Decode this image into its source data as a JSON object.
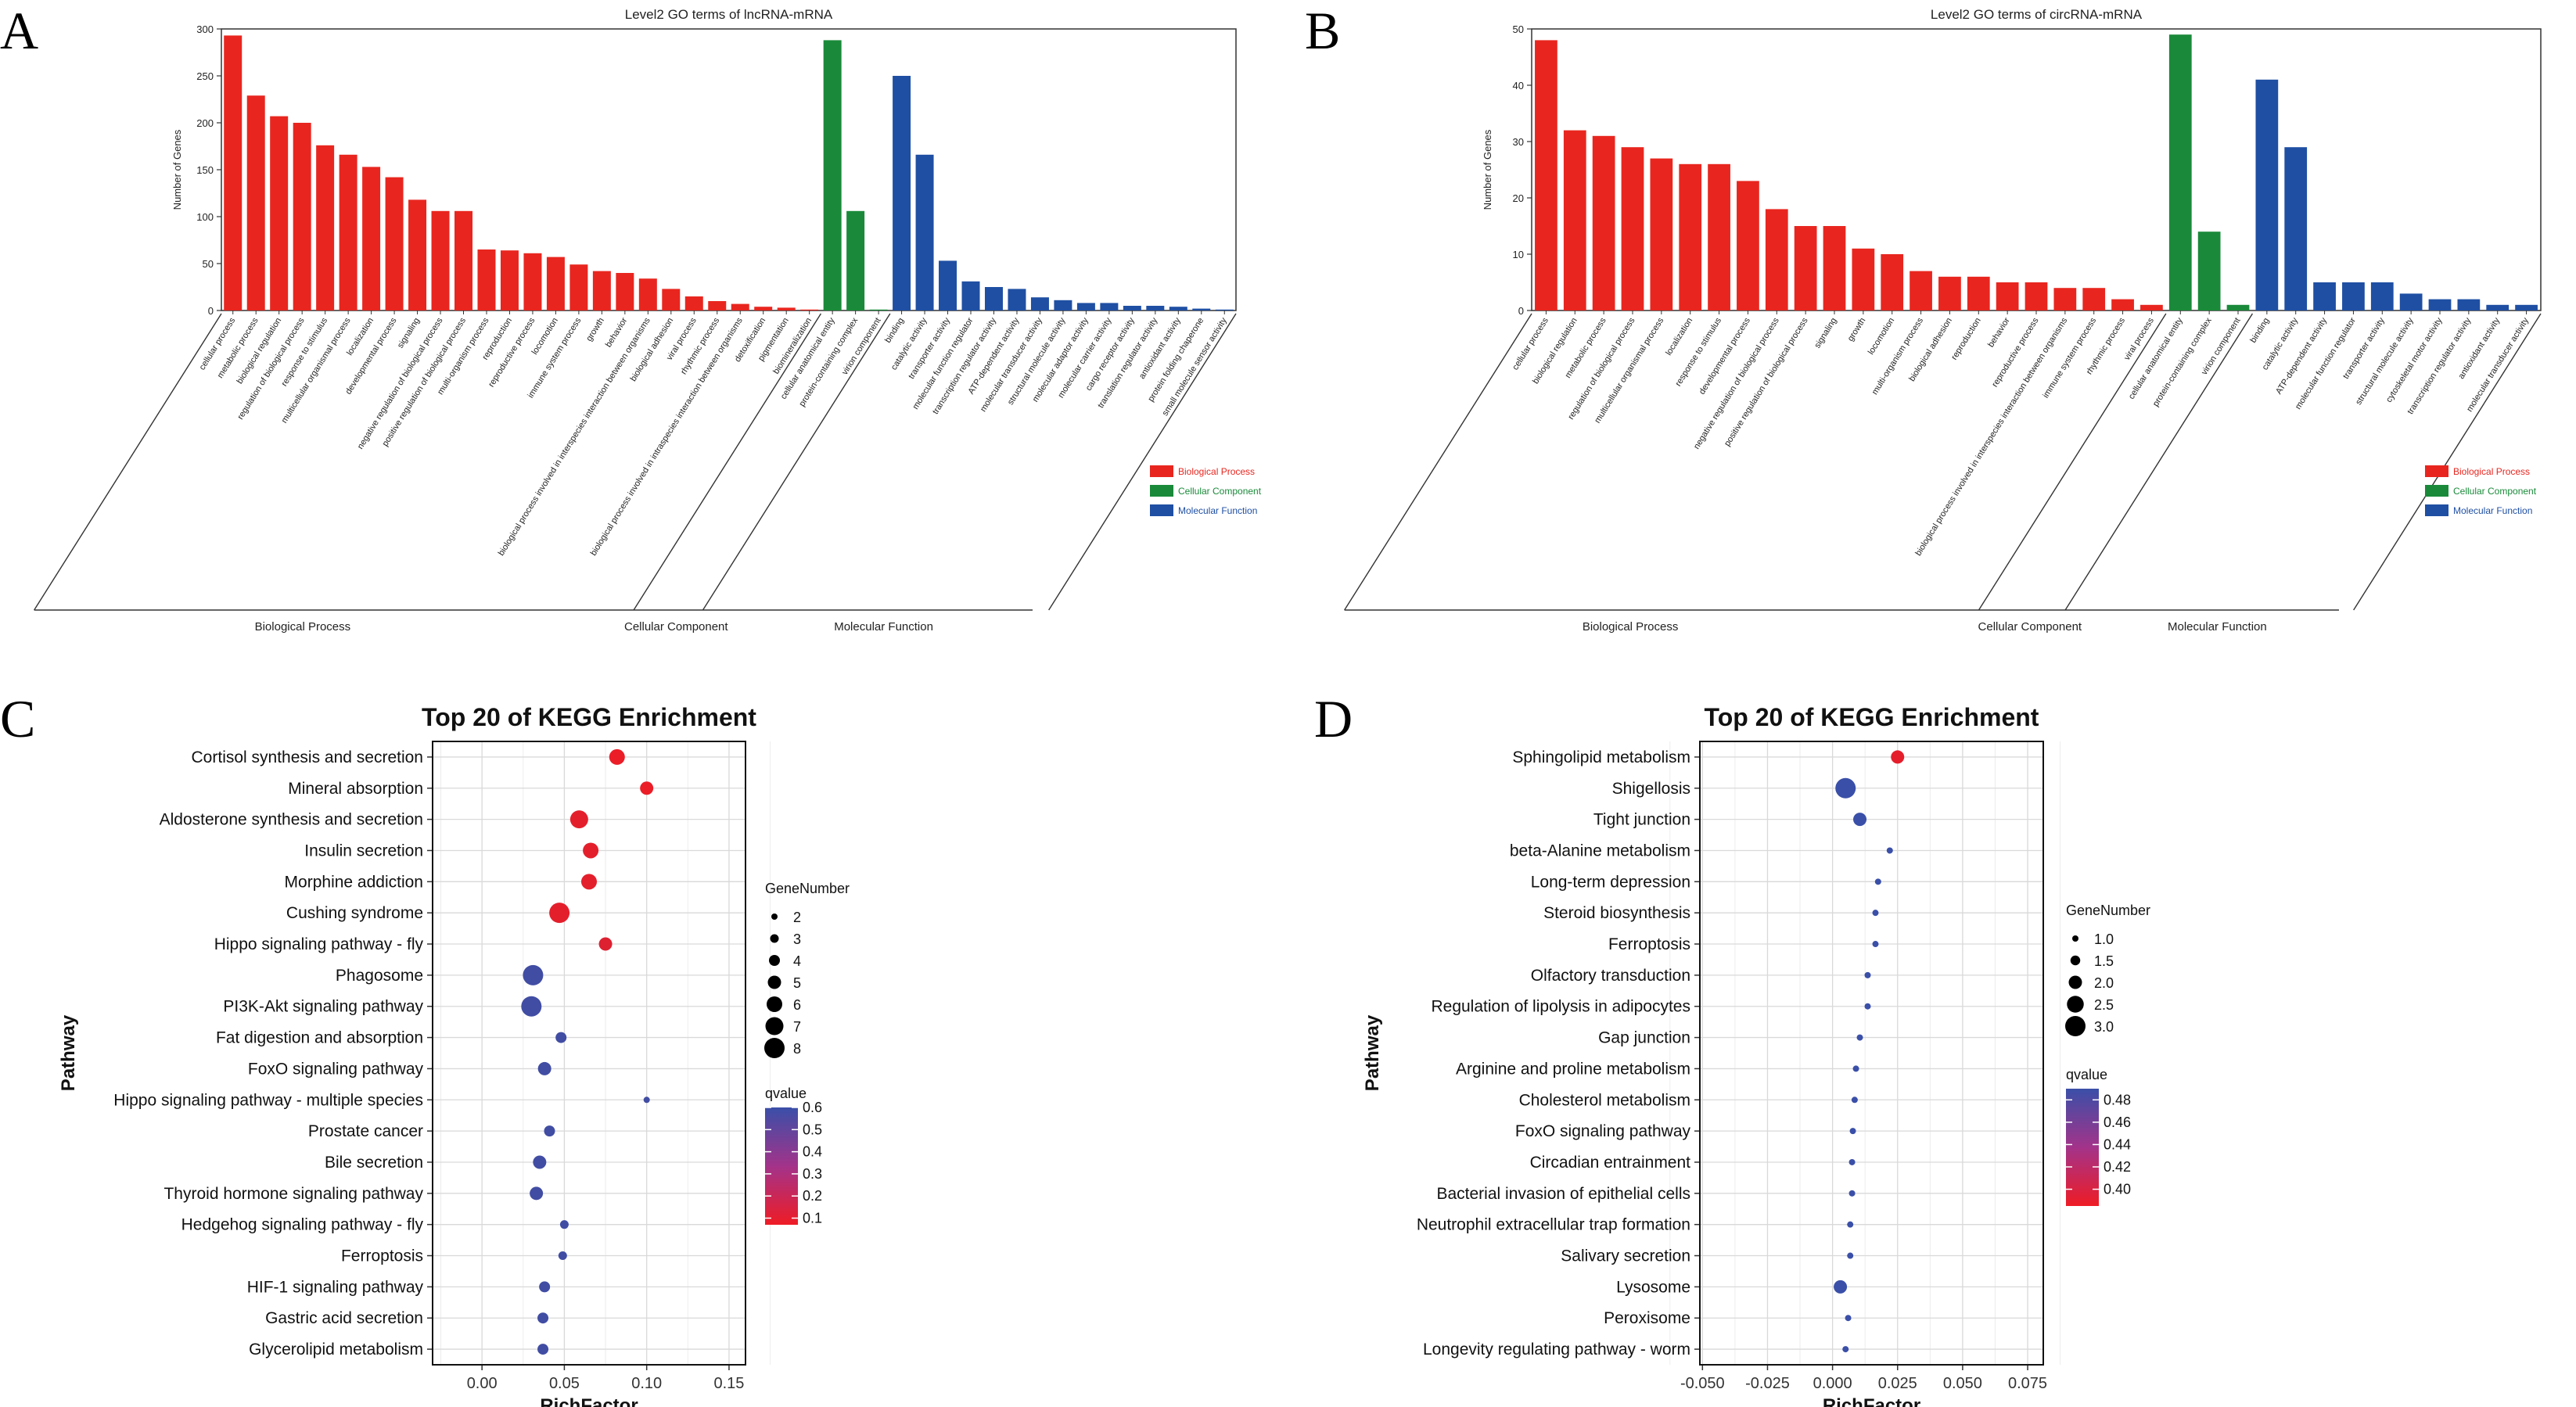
{
  "panels": {
    "A": {
      "letter": "A"
    },
    "B": {
      "letter": "B"
    },
    "C": {
      "letter": "C"
    },
    "D": {
      "letter": "D"
    }
  },
  "chart_data": [
    {
      "id": "A",
      "type": "bar",
      "title": "Level2 GO terms of lncRNA-mRNA",
      "ylabel": "Number of Genes",
      "ylim": [
        0,
        300
      ],
      "yticks": [
        0,
        50,
        100,
        150,
        200,
        250,
        300
      ],
      "legend": [
        {
          "name": "Biological Process",
          "color": "#e8261f"
        },
        {
          "name": "Cellular Component",
          "color": "#1a8a3a"
        },
        {
          "name": "Molecular Function",
          "color": "#1f4fa3"
        }
      ],
      "groups": [
        {
          "name": "Biological Process",
          "color": "#e8261f",
          "categories": [
            "cellular process",
            "metabolic process",
            "biological regulation",
            "regulation of biological process",
            "response to stimulus",
            "multicellular organismal process",
            "localization",
            "developmental process",
            "signaling",
            "negative regulation of biological process",
            "positive regulation of biological process",
            "multi-organism process",
            "reproduction",
            "reproductive process",
            "locomotion",
            "immune system process",
            "growth",
            "behavior",
            "biological process involved in interspecies interaction between organisms",
            "biological adhesion",
            "viral process",
            "rhythmic process",
            "biological process involved in intraspecies interaction between organisms",
            "detoxification",
            "pigmentation",
            "biomineralization"
          ],
          "values": [
            293,
            229,
            207,
            200,
            176,
            166,
            153,
            142,
            118,
            106,
            106,
            65,
            64,
            61,
            57,
            49,
            42,
            40,
            34,
            23,
            15,
            10,
            7,
            4,
            3,
            1
          ]
        },
        {
          "name": "Cellular Component",
          "color": "#1a8a3a",
          "categories": [
            "cellular anatomical entity",
            "protein-containing complex",
            "virion component"
          ],
          "values": [
            288,
            106,
            1
          ]
        },
        {
          "name": "Molecular Function",
          "color": "#1f4fa3",
          "categories": [
            "binding",
            "catalytic activity",
            "transporter activity",
            "molecular function regulator",
            "transcription regulator activity",
            "ATP-dependent activity",
            "molecular transducer activity",
            "structural molecule activity",
            "molecular adaptor activity",
            "molecular carrier activity",
            "cargo receptor activity",
            "translation regulator activity",
            "antioxidant activity",
            "protein folding chaperone",
            "small molecule sensor activity"
          ],
          "values": [
            250,
            166,
            53,
            31,
            25,
            23,
            14,
            11,
            8,
            8,
            5,
            5,
            4,
            2,
            1
          ]
        }
      ]
    },
    {
      "id": "B",
      "type": "bar",
      "title": "Level2 GO terms of circRNA-mRNA",
      "ylabel": "Number of Genes",
      "ylim": [
        0,
        50
      ],
      "yticks": [
        0,
        10,
        20,
        30,
        40,
        50
      ],
      "legend": [
        {
          "name": "Biological Process",
          "color": "#e8261f"
        },
        {
          "name": "Cellular Component",
          "color": "#1a8a3a"
        },
        {
          "name": "Molecular Function",
          "color": "#1f4fa3"
        }
      ],
      "groups": [
        {
          "name": "Biological Process",
          "color": "#e8261f",
          "categories": [
            "cellular process",
            "biological regulation",
            "metabolic process",
            "regulation of biological process",
            "multicellular organismal process",
            "localization",
            "response to stimulus",
            "developmental process",
            "negative regulation of biological process",
            "positive regulation of biological process",
            "signaling",
            "growth",
            "locomotion",
            "multi-organism process",
            "biological adhesion",
            "reproduction",
            "behavior",
            "reproductive process",
            "biological process involved in interspecies interaction between organisms",
            "immune system process",
            "rhythmic process",
            "viral process"
          ],
          "values": [
            48,
            32,
            31,
            29,
            27,
            26,
            26,
            23,
            18,
            15,
            15,
            11,
            10,
            7,
            6,
            6,
            5,
            5,
            4,
            4,
            2,
            1
          ]
        },
        {
          "name": "Cellular Component",
          "color": "#1a8a3a",
          "categories": [
            "cellular anatomical entity",
            "protein-containing complex",
            "virion component"
          ],
          "values": [
            49,
            14,
            1
          ]
        },
        {
          "name": "Molecular Function",
          "color": "#1f4fa3",
          "categories": [
            "binding",
            "catalytic activity",
            "ATP-dependent activity",
            "molecular function regulator",
            "transporter activity",
            "structural molecule activity",
            "cytoskeletal motor activity",
            "transcription regulator activity",
            "antioxidant activity",
            "molecular transducer activity"
          ],
          "values": [
            41,
            29,
            5,
            5,
            5,
            3,
            2,
            2,
            1,
            1
          ]
        }
      ]
    },
    {
      "id": "C",
      "type": "scatter",
      "title": "Top 20 of KEGG Enrichment",
      "xlabel": "RichFactor",
      "ylabel": "Pathway",
      "xlim": [
        -0.03,
        0.16
      ],
      "xticks": [
        0.0,
        0.05,
        0.1,
        0.15
      ],
      "xtick_labels": [
        "0.00",
        "0.05",
        "0.10",
        "0.15"
      ],
      "size_legend": {
        "title": "GeneNumber",
        "values": [
          2,
          3,
          4,
          5,
          6,
          7,
          8
        ],
        "labels": [
          "2",
          "3",
          "4",
          "5",
          "6",
          "7",
          "8"
        ]
      },
      "color_legend": {
        "title": "qvalue",
        "min": 0.07,
        "max": 0.6,
        "ticks": [
          "0.6",
          "0.5",
          "0.4",
          "0.3",
          "0.2",
          "0.1"
        ],
        "tick_values": [
          0.6,
          0.5,
          0.4,
          0.3,
          0.2,
          0.1
        ],
        "low_color": "#ee1c25",
        "high_color": "#3a4fa8"
      },
      "points": [
        {
          "pathway": "Cortisol synthesis and secretion",
          "x": 0.082,
          "size": 6,
          "q": 0.08
        },
        {
          "pathway": "Mineral absorption",
          "x": 0.1,
          "size": 5,
          "q": 0.08
        },
        {
          "pathway": "Aldosterone synthesis and secretion",
          "x": 0.059,
          "size": 7,
          "q": 0.1
        },
        {
          "pathway": "Insulin secretion",
          "x": 0.066,
          "size": 6,
          "q": 0.1
        },
        {
          "pathway": "Morphine addiction",
          "x": 0.065,
          "size": 6,
          "q": 0.1
        },
        {
          "pathway": "Cushing syndrome",
          "x": 0.047,
          "size": 8,
          "q": 0.1
        },
        {
          "pathway": "Hippo signaling pathway - fly",
          "x": 0.075,
          "size": 5,
          "q": 0.12
        },
        {
          "pathway": "Phagosome",
          "x": 0.031,
          "size": 8,
          "q": 0.58
        },
        {
          "pathway": "PI3K-Akt signaling pathway",
          "x": 0.03,
          "size": 8,
          "q": 0.58
        },
        {
          "pathway": "Fat digestion and absorption",
          "x": 0.048,
          "size": 4,
          "q": 0.58
        },
        {
          "pathway": "FoxO signaling pathway",
          "x": 0.038,
          "size": 5,
          "q": 0.58
        },
        {
          "pathway": "Hippo signaling pathway - multiple species",
          "x": 0.1,
          "size": 2,
          "q": 0.58
        },
        {
          "pathway": "Prostate cancer",
          "x": 0.041,
          "size": 4,
          "q": 0.58
        },
        {
          "pathway": "Bile secretion",
          "x": 0.035,
          "size": 5,
          "q": 0.58
        },
        {
          "pathway": "Thyroid hormone signaling pathway",
          "x": 0.033,
          "size": 5,
          "q": 0.58
        },
        {
          "pathway": "Hedgehog signaling pathway - fly",
          "x": 0.05,
          "size": 3,
          "q": 0.58
        },
        {
          "pathway": "Ferroptosis",
          "x": 0.049,
          "size": 3,
          "q": 0.58
        },
        {
          "pathway": "HIF-1 signaling pathway",
          "x": 0.038,
          "size": 4,
          "q": 0.58
        },
        {
          "pathway": "Gastric acid secretion",
          "x": 0.037,
          "size": 4,
          "q": 0.58
        },
        {
          "pathway": "Glycerolipid metabolism",
          "x": 0.037,
          "size": 4,
          "q": 0.58
        }
      ]
    },
    {
      "id": "D",
      "type": "scatter",
      "title": "Top 20 of KEGG Enrichment",
      "xlabel": "RichFactor",
      "ylabel": "Pathway",
      "xlim": [
        -0.051,
        0.081
      ],
      "xticks": [
        -0.05,
        -0.025,
        0.0,
        0.025,
        0.05,
        0.075
      ],
      "xtick_labels": [
        "-0.050",
        "-0.025",
        "0.000",
        "0.025",
        "0.050",
        "0.075"
      ],
      "size_legend": {
        "title": "GeneNumber",
        "values": [
          1.0,
          1.5,
          2.0,
          2.5,
          3.0
        ],
        "labels": [
          "1.0",
          "1.5",
          "2.0",
          "2.5",
          "3.0"
        ]
      },
      "color_legend": {
        "title": "qvalue",
        "min": 0.385,
        "max": 0.49,
        "ticks": [
          "0.48",
          "0.46",
          "0.44",
          "0.42",
          "0.40"
        ],
        "tick_values": [
          0.48,
          0.46,
          0.44,
          0.42,
          0.4
        ],
        "low_color": "#ee1c25",
        "high_color": "#3a4fa8"
      },
      "points": [
        {
          "pathway": "Sphingolipid metabolism",
          "x": 0.025,
          "size": 2,
          "q": 0.39
        },
        {
          "pathway": "Shigellosis",
          "x": 0.005,
          "size": 3,
          "q": 0.49
        },
        {
          "pathway": "Tight junction",
          "x": 0.0105,
          "size": 2,
          "q": 0.49
        },
        {
          "pathway": "beta-Alanine metabolism",
          "x": 0.022,
          "size": 1,
          "q": 0.49
        },
        {
          "pathway": "Long-term depression",
          "x": 0.0175,
          "size": 1,
          "q": 0.49
        },
        {
          "pathway": "Steroid biosynthesis",
          "x": 0.0165,
          "size": 1,
          "q": 0.49
        },
        {
          "pathway": "Ferroptosis",
          "x": 0.0165,
          "size": 1,
          "q": 0.49
        },
        {
          "pathway": "Olfactory transduction",
          "x": 0.0135,
          "size": 1,
          "q": 0.49
        },
        {
          "pathway": "Regulation of lipolysis in adipocytes",
          "x": 0.0135,
          "size": 1,
          "q": 0.49
        },
        {
          "pathway": "Gap junction",
          "x": 0.0105,
          "size": 1,
          "q": 0.49
        },
        {
          "pathway": "Arginine and proline metabolism",
          "x": 0.009,
          "size": 1,
          "q": 0.49
        },
        {
          "pathway": "Cholesterol metabolism",
          "x": 0.0085,
          "size": 1,
          "q": 0.49
        },
        {
          "pathway": "FoxO signaling pathway",
          "x": 0.0078,
          "size": 1,
          "q": 0.49
        },
        {
          "pathway": "Circadian entrainment",
          "x": 0.0075,
          "size": 1,
          "q": 0.49
        },
        {
          "pathway": "Bacterial invasion of epithelial cells",
          "x": 0.0075,
          "size": 1,
          "q": 0.49
        },
        {
          "pathway": "Neutrophil extracellular trap formation",
          "x": 0.0068,
          "size": 1,
          "q": 0.49
        },
        {
          "pathway": "Salivary secretion",
          "x": 0.0068,
          "size": 1,
          "q": 0.49
        },
        {
          "pathway": "Lysosome",
          "x": 0.003,
          "size": 2,
          "q": 0.49
        },
        {
          "pathway": "Peroxisome",
          "x": 0.006,
          "size": 1,
          "q": 0.49
        },
        {
          "pathway": "Longevity regulating pathway - worm",
          "x": 0.005,
          "size": 1,
          "q": 0.49
        }
      ]
    }
  ]
}
